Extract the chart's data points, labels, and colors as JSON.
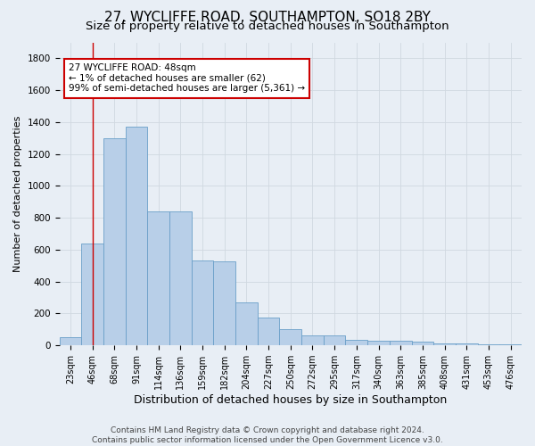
{
  "title_line1": "27, WYCLIFFE ROAD, SOUTHAMPTON, SO18 2BY",
  "title_line2": "Size of property relative to detached houses in Southampton",
  "xlabel": "Distribution of detached houses by size in Southampton",
  "ylabel": "Number of detached properties",
  "categories": [
    "23sqm",
    "46sqm",
    "68sqm",
    "91sqm",
    "114sqm",
    "136sqm",
    "159sqm",
    "182sqm",
    "204sqm",
    "227sqm",
    "250sqm",
    "272sqm",
    "295sqm",
    "317sqm",
    "340sqm",
    "363sqm",
    "385sqm",
    "408sqm",
    "431sqm",
    "453sqm",
    "476sqm"
  ],
  "values": [
    50,
    640,
    1300,
    1370,
    840,
    840,
    530,
    525,
    270,
    175,
    100,
    65,
    60,
    35,
    30,
    28,
    25,
    15,
    10,
    8,
    8
  ],
  "bar_color": "#b8cfe8",
  "bar_edge_color": "#6a9fc8",
  "annotation_text_line1": "27 WYCLIFFE ROAD: 48sqm",
  "annotation_text_line2": "← 1% of detached houses are smaller (62)",
  "annotation_text_line3": "99% of semi-detached houses are larger (5,361) →",
  "annotation_box_color": "#ffffff",
  "annotation_box_edge_color": "#cc0000",
  "vline_color": "#cc0000",
  "vline_x_index": 1,
  "ylim": [
    0,
    1900
  ],
  "yticks": [
    0,
    200,
    400,
    600,
    800,
    1000,
    1200,
    1400,
    1600,
    1800
  ],
  "grid_color": "#d0d8e0",
  "bg_color": "#e8eef5",
  "footer_line1": "Contains HM Land Registry data © Crown copyright and database right 2024.",
  "footer_line2": "Contains public sector information licensed under the Open Government Licence v3.0.",
  "title_fontsize": 11,
  "subtitle_fontsize": 9.5,
  "xlabel_fontsize": 9,
  "ylabel_fontsize": 8,
  "tick_fontsize": 7,
  "annotation_fontsize": 7.5,
  "footer_fontsize": 6.5
}
